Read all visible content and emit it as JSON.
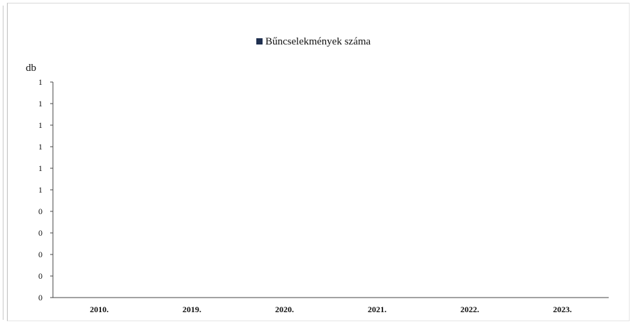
{
  "chart_data": {
    "type": "bar",
    "title": "",
    "xlabel": "",
    "ylabel": "db",
    "categories": [
      "2010.",
      "2019.",
      "2020.",
      "2021.",
      "2022.",
      "2023."
    ],
    "series": [
      {
        "name": "Bűncselekmények száma",
        "values": [
          0,
          0,
          0,
          0,
          0,
          0
        ],
        "color": "#1f3050"
      }
    ],
    "y_tick_labels": [
      "0",
      "0",
      "0",
      "0",
      "0",
      "1",
      "1",
      "1",
      "1",
      "1",
      "1"
    ],
    "ylim": [
      0,
      1
    ],
    "grid": false,
    "legend_position": "top-center"
  }
}
